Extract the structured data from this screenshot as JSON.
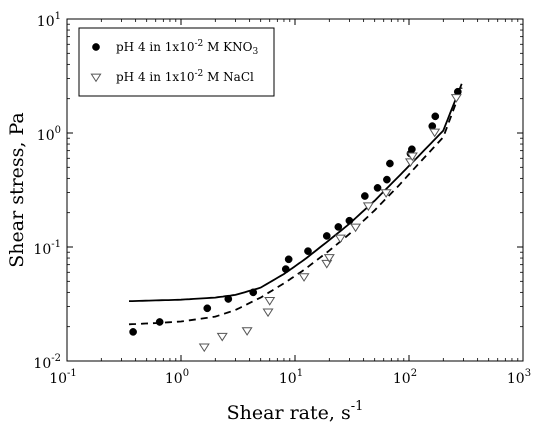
{
  "chart_data": {
    "type": "scatter",
    "x_scale": "log",
    "y_scale": "log",
    "xlim": [
      0.1,
      1000
    ],
    "ylim": [
      0.01,
      10
    ],
    "xlabel": {
      "text": "Shear rate, s",
      "sup": "-1"
    },
    "ylabel": "Shear stress, Pa",
    "x_ticks": [
      {
        "value": 0.1,
        "base": "10",
        "exp": "-1"
      },
      {
        "value": 1,
        "base": "10",
        "exp": "0"
      },
      {
        "value": 10,
        "base": "10",
        "exp": "1"
      },
      {
        "value": 100,
        "base": "10",
        "exp": "2"
      },
      {
        "value": 1000,
        "base": "10",
        "exp": "3"
      }
    ],
    "y_ticks": [
      {
        "value": 0.01,
        "base": "10",
        "exp": "-2"
      },
      {
        "value": 0.1,
        "base": "10",
        "exp": "-1"
      },
      {
        "value": 1,
        "base": "10",
        "exp": "0"
      },
      {
        "value": 10,
        "base": "10",
        "exp": "1"
      }
    ],
    "legend_position": "top-left",
    "series": [
      {
        "name": "pH 4 in 1x10-2 M KNO3",
        "label": {
          "pre": "pH 4 in 1x10",
          "sup": "-2",
          "mid": " M KNO",
          "sub": "3"
        },
        "marker": "filled-circle",
        "color": "#000000",
        "x": [
          0.38,
          0.65,
          1.7,
          2.6,
          4.3,
          8.3,
          8.8,
          13,
          19,
          24,
          30,
          41,
          53,
          64,
          68,
          103,
          106,
          160,
          170,
          268
        ],
        "y": [
          0.018,
          0.022,
          0.029,
          0.035,
          0.04,
          0.064,
          0.078,
          0.092,
          0.125,
          0.15,
          0.17,
          0.28,
          0.33,
          0.39,
          0.54,
          0.66,
          0.72,
          1.15,
          1.4,
          2.3
        ]
      },
      {
        "name": "pH 4 in 1x10-2 M NaCl",
        "label": {
          "pre": "pH 4 in 1x10",
          "sup": "-2",
          "mid": " M NaCl",
          "sub": ""
        },
        "marker": "open-triangle-down",
        "color": "#555555",
        "x": [
          1.6,
          2.3,
          3.8,
          5.8,
          6.0,
          12,
          19,
          20,
          25,
          34,
          44,
          63,
          103,
          107,
          168,
          260
        ],
        "y": [
          0.0133,
          0.0165,
          0.0185,
          0.027,
          0.034,
          0.055,
          0.072,
          0.081,
          0.12,
          0.15,
          0.23,
          0.3,
          0.56,
          0.63,
          1.02,
          2.05
        ]
      }
    ],
    "fit_lines": [
      {
        "style": "solid",
        "color": "#000000",
        "x": [
          0.35,
          0.6,
          1,
          2,
          3,
          5,
          8,
          12,
          20,
          30,
          50,
          80,
          120,
          200,
          290
        ],
        "y": [
          0.0335,
          0.034,
          0.0345,
          0.036,
          0.038,
          0.044,
          0.058,
          0.077,
          0.115,
          0.16,
          0.255,
          0.41,
          0.62,
          1.05,
          2.7
        ]
      },
      {
        "style": "dashed",
        "color": "#000000",
        "x": [
          0.35,
          0.6,
          1,
          2,
          3,
          5,
          8,
          12,
          20,
          30,
          50,
          80,
          120,
          200,
          290
        ],
        "y": [
          0.021,
          0.0215,
          0.0222,
          0.0245,
          0.028,
          0.036,
          0.048,
          0.063,
          0.093,
          0.13,
          0.21,
          0.34,
          0.53,
          0.92,
          2.5
        ]
      }
    ]
  }
}
